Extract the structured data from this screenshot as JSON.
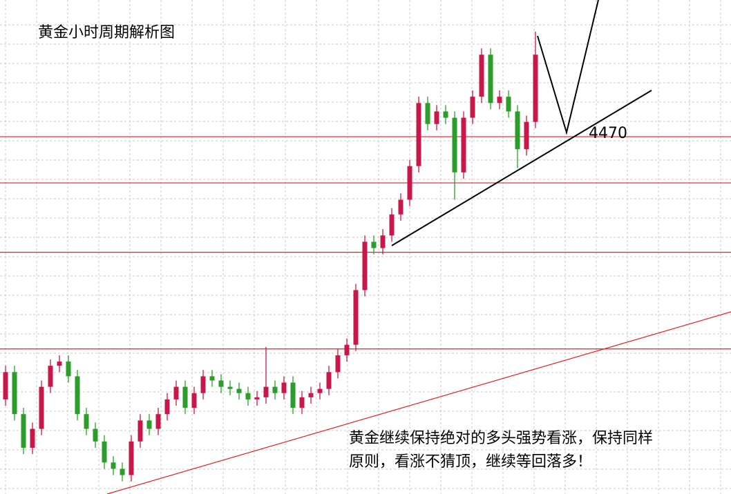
{
  "chart_data": {
    "type": "candlestick",
    "title": "黄金小时周期解析图",
    "annotation": [
      "黄金继续保持绝对的多头强势看涨，保持同样",
      "原则，看涨不猜顶，继续等回落多！"
    ],
    "open": [
      4345,
      4358,
      4338,
      4322,
      4331,
      4351,
      4361,
      4363,
      4356,
      4338,
      4331,
      4325,
      4315,
      4312,
      4309,
      4325,
      4335,
      4331,
      4338,
      4345,
      4351,
      4341,
      4348,
      4356,
      4354,
      4351,
      4350,
      4348,
      4345,
      4346,
      4351,
      4348,
      4353,
      4341,
      4346,
      4348,
      4350,
      4358,
      4366,
      4371,
      4397,
      4420,
      4417,
      4423,
      4433,
      4440,
      4456,
      4486,
      4476,
      4482,
      4479,
      4453,
      4479,
      4489,
      4509,
      4486,
      4489,
      4482,
      4464,
      4477
    ],
    "high": [
      4361,
      4361,
      4341,
      4334,
      4354,
      4364,
      4366,
      4366,
      4359,
      4341,
      4334,
      4328,
      4318,
      4315,
      4328,
      4338,
      4338,
      4341,
      4348,
      4354,
      4354,
      4351,
      4359,
      4359,
      4357,
      4354,
      4353,
      4351,
      4349,
      4370,
      4354,
      4356,
      4356,
      4349,
      4351,
      4353,
      4361,
      4369,
      4374,
      4400,
      4423,
      4423,
      4426,
      4436,
      4443,
      4459,
      4489,
      4489,
      4485,
      4485,
      4482,
      4482,
      4492,
      4512,
      4512,
      4492,
      4492,
      4485,
      4480,
      4520
    ],
    "low": [
      4342,
      4335,
      4319,
      4319,
      4328,
      4348,
      4358,
      4353,
      4335,
      4328,
      4322,
      4312,
      4309,
      4306,
      4306,
      4322,
      4328,
      4328,
      4335,
      4342,
      4338,
      4338,
      4345,
      4351,
      4348,
      4347,
      4345,
      4342,
      4342,
      4343,
      4345,
      4345,
      4338,
      4338,
      4343,
      4345,
      4347,
      4355,
      4363,
      4368,
      4394,
      4414,
      4414,
      4420,
      4430,
      4437,
      4453,
      4473,
      4473,
      4476,
      4440,
      4450,
      4476,
      4486,
      4483,
      4483,
      4479,
      4455,
      4461,
      4474
    ],
    "close": [
      4358,
      4338,
      4322,
      4331,
      4351,
      4361,
      4363,
      4356,
      4338,
      4331,
      4325,
      4315,
      4312,
      4309,
      4325,
      4335,
      4331,
      4338,
      4345,
      4351,
      4341,
      4348,
      4356,
      4354,
      4351,
      4350,
      4348,
      4345,
      4346,
      4351,
      4348,
      4353,
      4341,
      4346,
      4348,
      4350,
      4358,
      4366,
      4371,
      4397,
      4420,
      4417,
      4423,
      4433,
      4440,
      4456,
      4486,
      4476,
      4482,
      4479,
      4453,
      4479,
      4489,
      4509,
      4486,
      4489,
      4482,
      4464,
      4477,
      4509
    ],
    "up_color": "#c8184a",
    "down_color": "#2a9d2a",
    "level_color": "#e02020",
    "levels": [
      4470,
      4448,
      4415,
      4369
    ],
    "ylim": [
      4300,
      4535
    ],
    "grid": true
  }
}
